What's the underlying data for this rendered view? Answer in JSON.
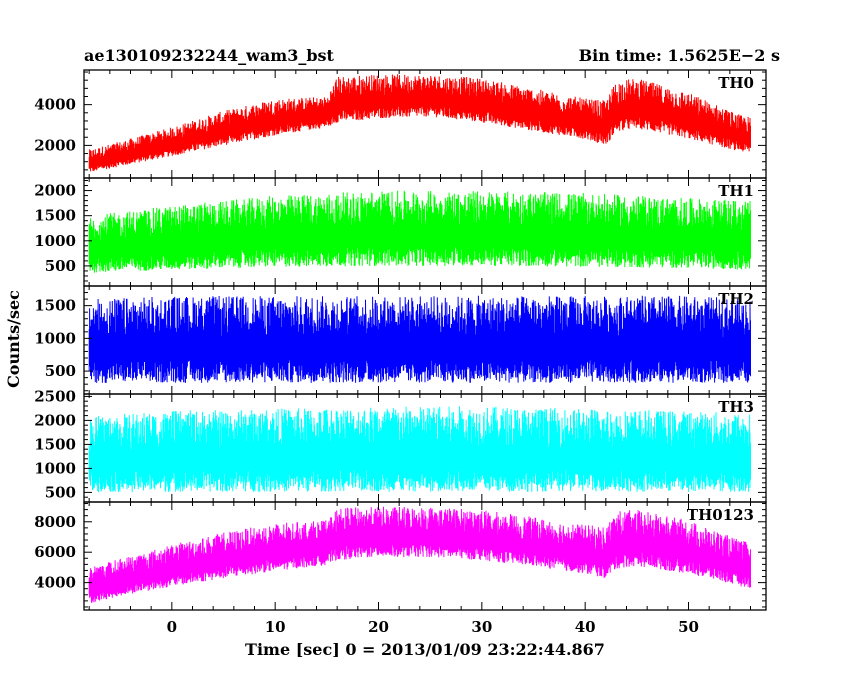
{
  "chart_data": {
    "type": "line",
    "title_left": "ae130109232244_wam3_bst",
    "title_right": "Bin time: 1.5625E−2 s",
    "xlabel": "Time [sec] 0 = 2013/01/09 23:22:44.867",
    "ylabel": "Counts/sec",
    "xlim": [
      -8.5,
      57.5
    ],
    "x_data_range": [
      -8,
      56
    ],
    "x_ticks": [
      0,
      10,
      20,
      30,
      40,
      50
    ],
    "x_tick_labels": [
      "0",
      "10",
      "20",
      "30",
      "40",
      "50"
    ],
    "grid": false,
    "panels": [
      {
        "name": "TH0",
        "color": "#ff0000",
        "ylim": [
          400,
          5700
        ],
        "y_ticks": [
          2000,
          4000
        ],
        "y_tick_labels": [
          "2000",
          "4000"
        ],
        "envelope": {
          "x": [
            -8,
            -5,
            0,
            5,
            10,
            15,
            16,
            20,
            25,
            30,
            35,
            40,
            42,
            43,
            45,
            50,
            55,
            56
          ],
          "low": [
            600,
            900,
            1400,
            1900,
            2400,
            2800,
            3000,
            3200,
            3300,
            3000,
            2600,
            2200,
            1900,
            2500,
            2700,
            2200,
            1600,
            1500
          ],
          "high": [
            1800,
            2200,
            2900,
            3700,
            4300,
            4400,
            5400,
            5500,
            5500,
            5300,
            4800,
            4300,
            4200,
            5200,
            5300,
            4600,
            3500,
            3400
          ]
        }
      },
      {
        "name": "TH1",
        "color": "#00ff00",
        "ylim": [
          100,
          2250
        ],
        "y_ticks": [
          500,
          1000,
          1500,
          2000
        ],
        "y_tick_labels": [
          "500",
          "1000",
          "1500",
          "2000"
        ],
        "envelope": {
          "x": [
            -8,
            0,
            10,
            20,
            30,
            40,
            50,
            56
          ],
          "low": [
            300,
            350,
            400,
            420,
            420,
            400,
            380,
            350
          ],
          "high": [
            1500,
            1700,
            1900,
            2000,
            2000,
            1950,
            1850,
            1800
          ]
        }
      },
      {
        "name": "TH2",
        "color": "#0000ff",
        "ylim": [
          150,
          1800
        ],
        "y_ticks": [
          500,
          1000,
          1500
        ],
        "y_tick_labels": [
          "500",
          "1000",
          "1500"
        ],
        "envelope": {
          "x": [
            -8,
            0,
            10,
            20,
            30,
            40,
            50,
            56
          ],
          "low": [
            250,
            250,
            250,
            250,
            250,
            250,
            250,
            250
          ],
          "high": [
            1600,
            1650,
            1650,
            1650,
            1650,
            1650,
            1650,
            1600
          ]
        }
      },
      {
        "name": "TH3",
        "color": "#00ffff",
        "ylim": [
          300,
          2550
        ],
        "y_ticks": [
          500,
          1000,
          1500,
          2000,
          2500
        ],
        "y_tick_labels": [
          "500",
          "1000",
          "1500",
          "2000",
          "2500"
        ],
        "envelope": {
          "x": [
            -8,
            0,
            10,
            20,
            30,
            40,
            50,
            56
          ],
          "low": [
            420,
            420,
            420,
            420,
            420,
            420,
            420,
            420
          ],
          "high": [
            2100,
            2200,
            2250,
            2300,
            2300,
            2250,
            2200,
            2150
          ]
        }
      },
      {
        "name": "TH0123",
        "color": "#ff00ff",
        "ylim": [
          2200,
          9300
        ],
        "y_ticks": [
          4000,
          6000,
          8000
        ],
        "y_tick_labels": [
          "4000",
          "6000",
          "8000"
        ],
        "envelope": {
          "x": [
            -8,
            -5,
            0,
            5,
            10,
            15,
            16,
            20,
            25,
            30,
            35,
            40,
            42,
            43,
            45,
            50,
            55,
            56
          ],
          "low": [
            2500,
            3000,
            3600,
            4100,
            4600,
            5000,
            5300,
            5500,
            5500,
            5300,
            4900,
            4400,
            4100,
            4700,
            4900,
            4400,
            3600,
            3500
          ],
          "high": [
            5000,
            5600,
            6500,
            7300,
            7900,
            8100,
            8900,
            9000,
            9000,
            8800,
            8300,
            7800,
            7700,
            8700,
            8800,
            8100,
            6800,
            6600
          ]
        }
      }
    ]
  }
}
